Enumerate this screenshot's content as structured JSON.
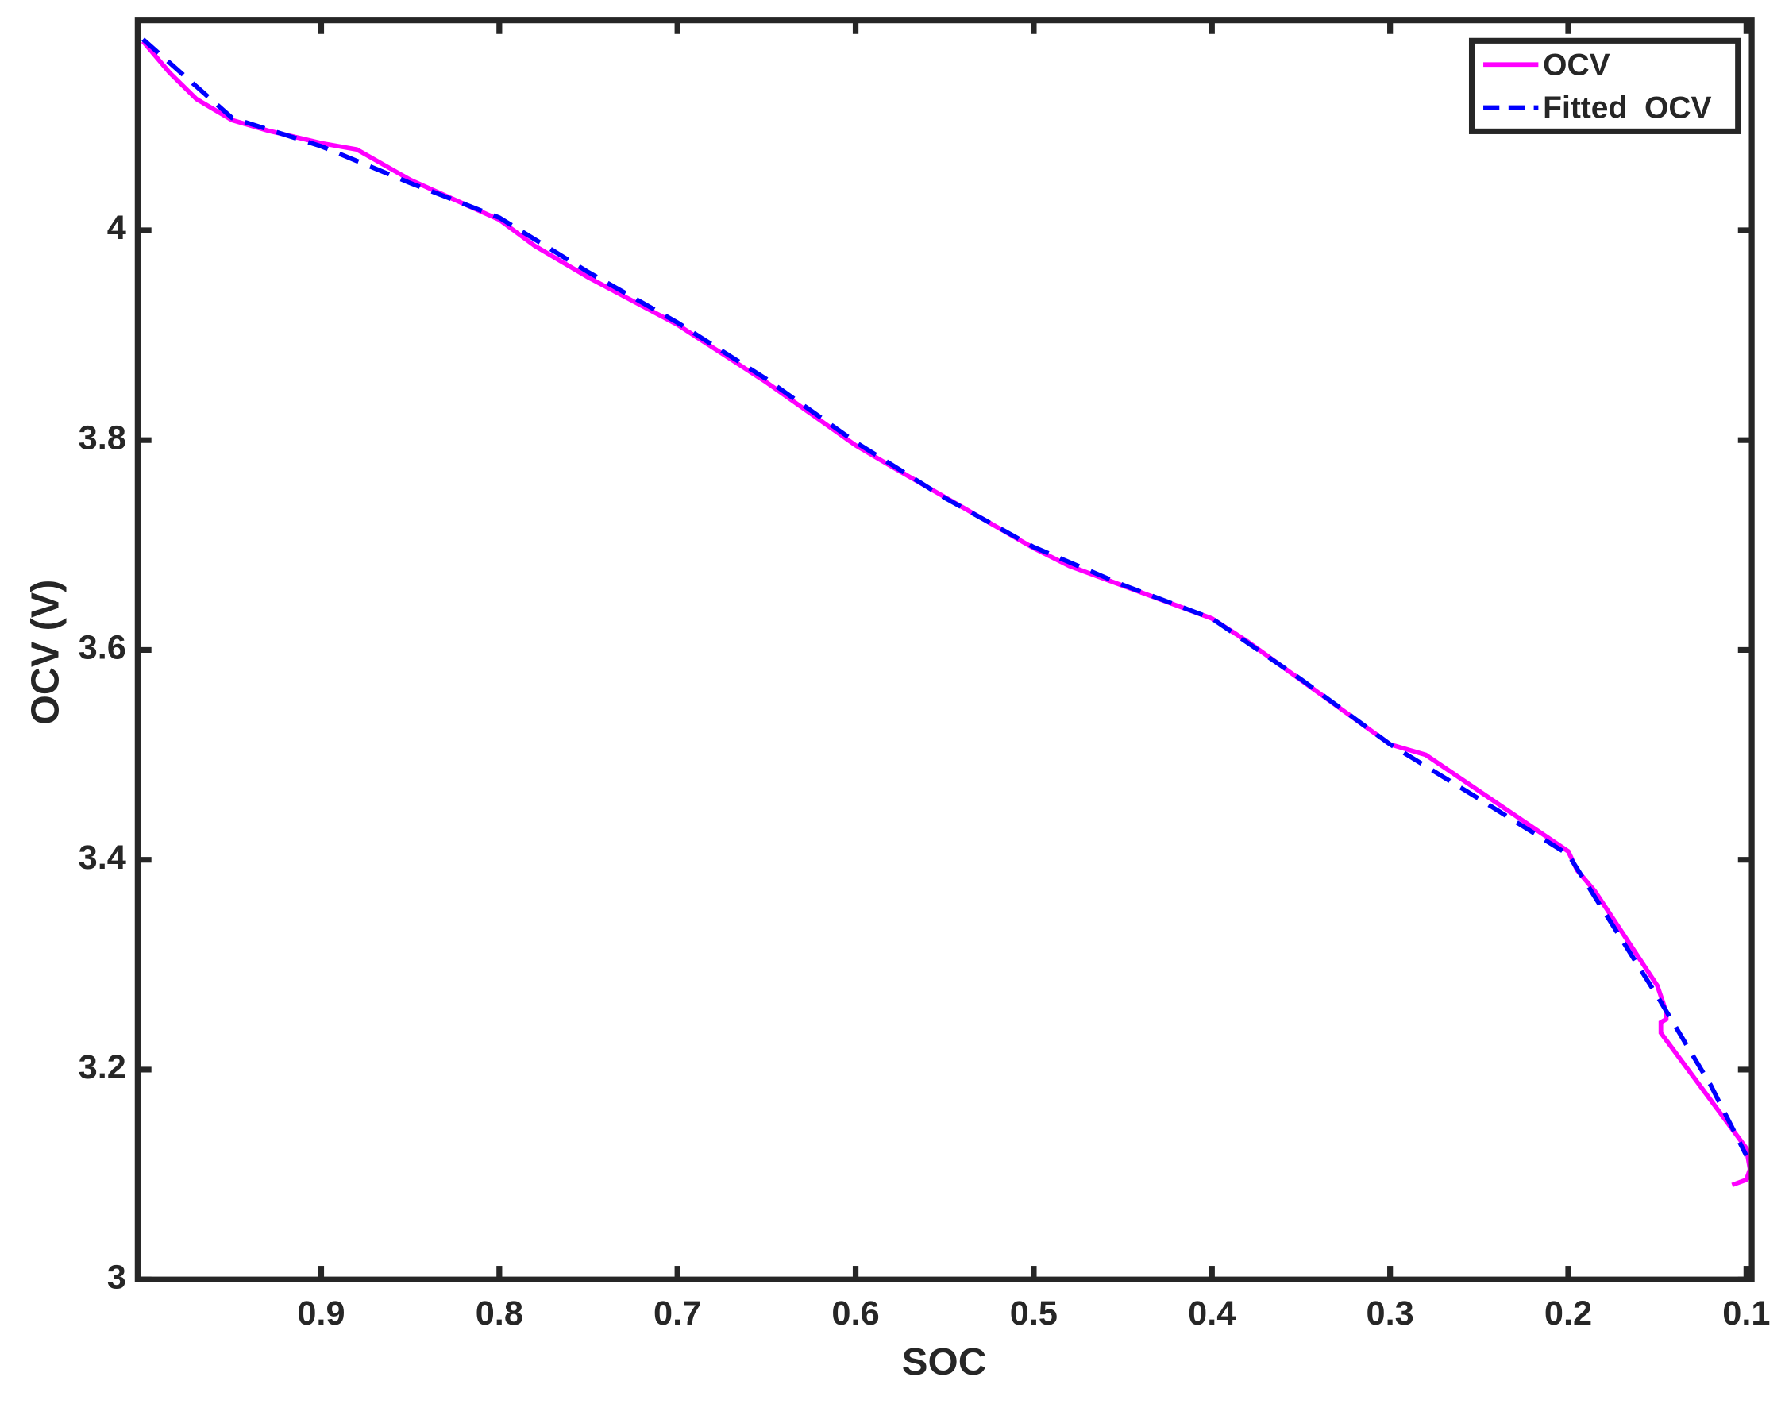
{
  "chart_data": {
    "type": "line",
    "xlabel": "SOC",
    "ylabel": "OCV (V)",
    "xlim": [
      1.003,
      0.097
    ],
    "ylim": [
      3,
      4.2
    ],
    "xticks": [
      0.9,
      0.8,
      0.7,
      0.6,
      0.5,
      0.4,
      0.3,
      0.2,
      0.1
    ],
    "yticks": [
      3,
      3.2,
      3.4,
      3.6,
      3.8,
      4
    ],
    "legend": "upper right",
    "series": [
      {
        "name": "OCV",
        "color": "#ff00ff",
        "dash": "solid",
        "x": [
          1.0,
          0.985,
          0.97,
          0.95,
          0.93,
          0.9,
          0.88,
          0.85,
          0.8,
          0.78,
          0.75,
          0.7,
          0.65,
          0.6,
          0.58,
          0.5,
          0.48,
          0.4,
          0.38,
          0.3,
          0.28,
          0.2,
          0.195,
          0.185,
          0.15,
          0.145,
          0.145,
          0.148,
          0.148,
          0.1,
          0.098,
          0.1,
          0.108
        ],
        "values": [
          4.18,
          4.15,
          4.125,
          4.105,
          4.095,
          4.083,
          4.077,
          4.048,
          4.01,
          3.985,
          3.955,
          3.91,
          3.855,
          3.795,
          3.775,
          3.697,
          3.68,
          3.63,
          3.608,
          3.51,
          3.5,
          3.408,
          3.39,
          3.37,
          3.28,
          3.255,
          3.248,
          3.245,
          3.235,
          3.125,
          3.105,
          3.095,
          3.09
        ]
      },
      {
        "name": "Fitted  OCV",
        "color": "#0000ff",
        "dash": "dashed",
        "x": [
          1.0,
          0.95,
          0.9,
          0.85,
          0.8,
          0.75,
          0.7,
          0.65,
          0.6,
          0.55,
          0.5,
          0.45,
          0.4,
          0.35,
          0.3,
          0.25,
          0.2,
          0.15,
          0.12,
          0.1
        ],
        "values": [
          4.182,
          4.107,
          4.08,
          4.045,
          4.012,
          3.96,
          3.912,
          3.858,
          3.798,
          3.745,
          3.698,
          3.662,
          3.63,
          3.572,
          3.51,
          3.458,
          3.405,
          3.27,
          3.185,
          3.118
        ]
      }
    ]
  }
}
